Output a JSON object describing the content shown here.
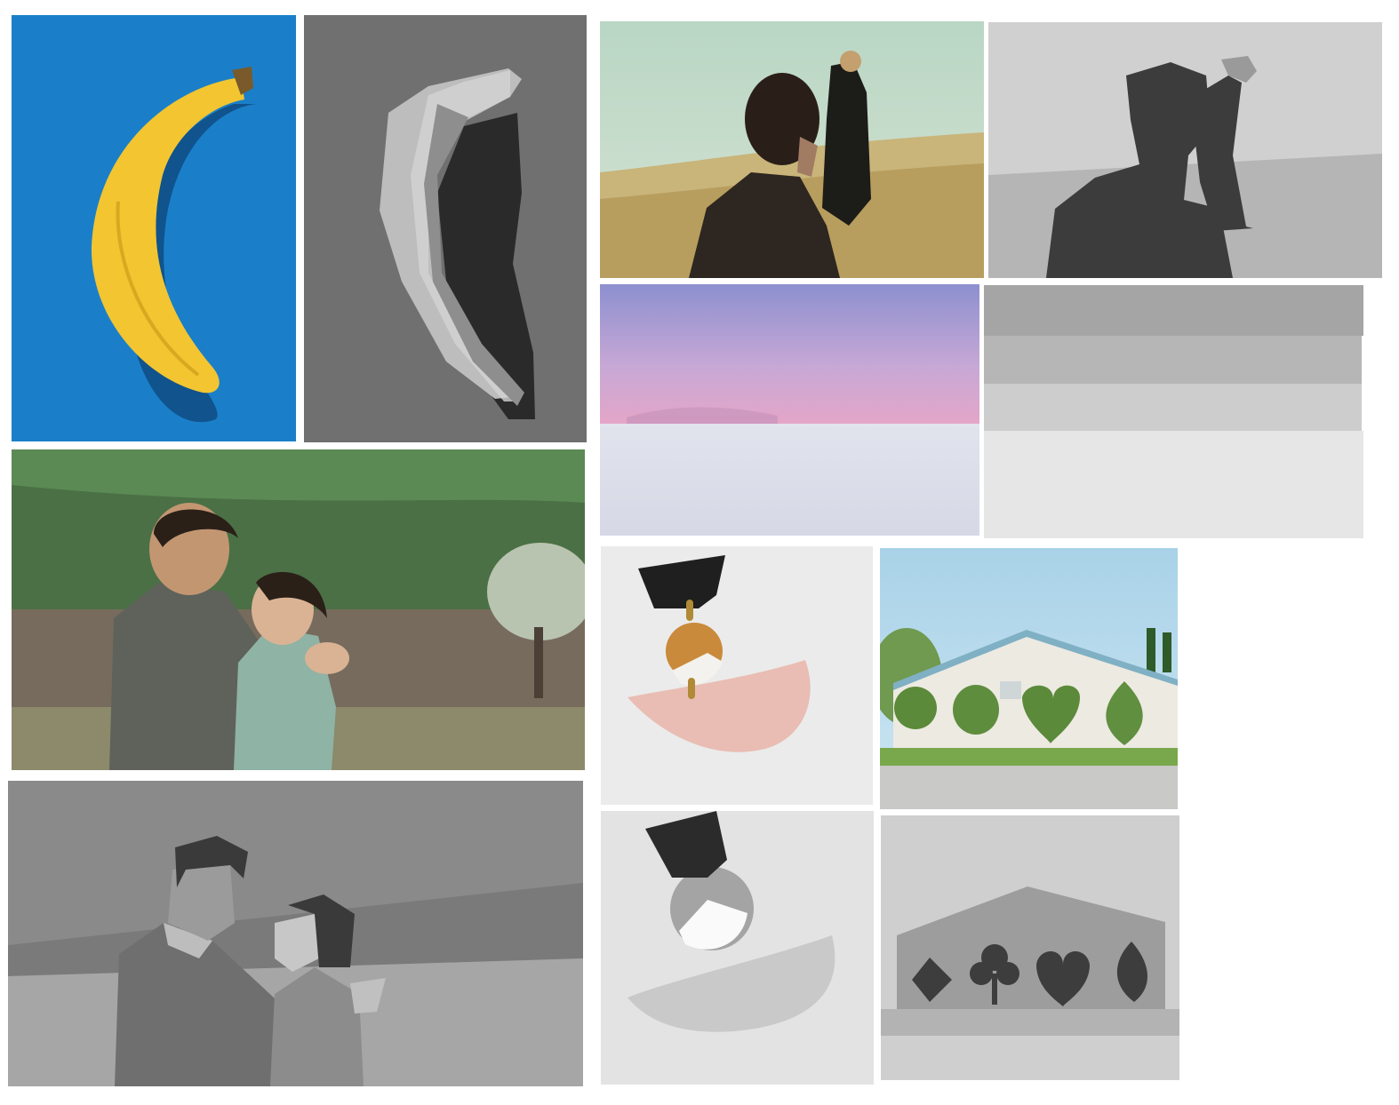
{
  "layout": "grid-of-photo-and-grayscale-segmentation-pairs",
  "pairs": [
    {
      "subject": "banana",
      "photo": "banana-photo",
      "segmentation": "banana-segmentation"
    },
    {
      "subject": "two-people-in-field",
      "photo": "field-people-photo",
      "segmentation": "field-people-segmentation"
    },
    {
      "subject": "horizon-landscape",
      "photo": "horizon-photo",
      "segmentation": "horizon-segmentation"
    },
    {
      "subject": "couple-in-forest",
      "photo": "couple-photo",
      "segmentation": "couple-segmentation"
    },
    {
      "subject": "earring",
      "photo": "earring-photo",
      "segmentation": "earring-segmentation"
    },
    {
      "subject": "house-with-shrubs",
      "photo": "house-photo",
      "segmentation": "house-segmentation"
    }
  ],
  "colors": {
    "banana_bg": "#1a7fc8",
    "banana_yellow": "#f2c531",
    "seg_dark": "#3a3a3a",
    "seg_mid": "#8a8a8a",
    "seg_light": "#bdbdbd"
  }
}
